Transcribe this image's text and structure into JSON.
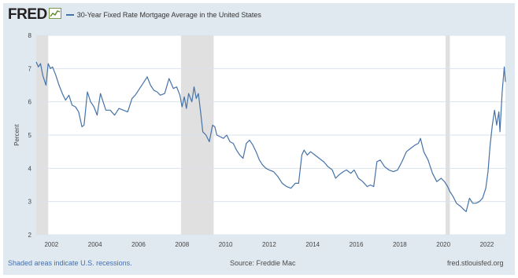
{
  "header": {
    "logo_text": "FRED",
    "logo_icon": "chart-line-icon",
    "series_title": "30-Year Fixed Rate Mortgage Average in the United States"
  },
  "footer": {
    "recession_note": "Shaded areas indicate U.S. recessions.",
    "source": "Source: Freddie Mac",
    "site": "fred.stlouisfed.org"
  },
  "colors": {
    "background": "#e1e9f0",
    "plot_background": "#ffffff",
    "line": "#4572a7",
    "recession": "#e0e0e0",
    "grid": "#dde3ea"
  },
  "chart_data": {
    "type": "line",
    "title": "30-Year Fixed Rate Mortgage Average in the United States",
    "xlabel": "",
    "ylabel": "Percent",
    "xlim": [
      2001.3,
      2022.85
    ],
    "ylim": [
      2,
      8
    ],
    "xticks": [
      "2002",
      "2004",
      "2006",
      "2008",
      "2010",
      "2012",
      "2014",
      "2016",
      "2018",
      "2020",
      "2022"
    ],
    "yticks": [
      "2",
      "3",
      "4",
      "5",
      "6",
      "7",
      "8"
    ],
    "grid": true,
    "recessions": [
      [
        2001.2,
        2001.85
      ],
      [
        2007.95,
        2009.45
      ],
      [
        2020.1,
        2020.3
      ]
    ],
    "series": [
      {
        "x": [
          2001.3,
          2001.4,
          2001.5,
          2001.6,
          2001.75,
          2001.85,
          2001.95,
          2002.05,
          2002.2,
          2002.35,
          2002.5,
          2002.65,
          2002.8,
          2002.95,
          2003.1,
          2003.25,
          2003.4,
          2003.5,
          2003.65,
          2003.8,
          2003.95,
          2004.1,
          2004.25,
          2004.4,
          2004.5,
          2004.7,
          2004.9,
          2005.1,
          2005.3,
          2005.5,
          2005.7,
          2005.85,
          2006.0,
          2006.2,
          2006.4,
          2006.55,
          2006.7,
          2006.85,
          2007.0,
          2007.2,
          2007.4,
          2007.5,
          2007.6,
          2007.75,
          2007.9,
          2008.0,
          2008.1,
          2008.2,
          2008.3,
          2008.45,
          2008.55,
          2008.65,
          2008.75,
          2008.85,
          2008.95,
          2009.1,
          2009.25,
          2009.4,
          2009.5,
          2009.6,
          2009.75,
          2009.9,
          2010.05,
          2010.2,
          2010.35,
          2010.5,
          2010.65,
          2010.8,
          2010.95,
          2011.1,
          2011.25,
          2011.4,
          2011.55,
          2011.7,
          2011.85,
          2012.0,
          2012.2,
          2012.4,
          2012.6,
          2012.8,
          2013.0,
          2013.2,
          2013.35,
          2013.5,
          2013.6,
          2013.75,
          2013.9,
          2014.1,
          2014.3,
          2014.5,
          2014.7,
          2014.9,
          2015.05,
          2015.2,
          2015.4,
          2015.55,
          2015.75,
          2015.9,
          2016.1,
          2016.3,
          2016.5,
          2016.65,
          2016.8,
          2016.95,
          2017.1,
          2017.3,
          2017.5,
          2017.7,
          2017.9,
          2018.1,
          2018.3,
          2018.5,
          2018.7,
          2018.85,
          2018.95,
          2019.1,
          2019.3,
          2019.5,
          2019.7,
          2019.9,
          2020.05,
          2020.2,
          2020.3,
          2020.45,
          2020.6,
          2020.8,
          2020.95,
          2021.05,
          2021.2,
          2021.35,
          2021.5,
          2021.65,
          2021.8,
          2021.95,
          2022.05,
          2022.15,
          2022.25,
          2022.35,
          2022.45,
          2022.55,
          2022.6,
          2022.7,
          2022.8,
          2022.85
        ],
        "values": [
          7.2,
          7.05,
          7.15,
          6.8,
          6.5,
          7.15,
          7.0,
          7.05,
          6.8,
          6.5,
          6.25,
          6.05,
          6.2,
          5.9,
          5.85,
          5.7,
          5.25,
          5.3,
          6.3,
          6.0,
          5.85,
          5.6,
          6.25,
          5.95,
          5.75,
          5.75,
          5.6,
          5.8,
          5.75,
          5.7,
          6.1,
          6.2,
          6.35,
          6.55,
          6.75,
          6.5,
          6.35,
          6.3,
          6.2,
          6.25,
          6.7,
          6.55,
          6.4,
          6.45,
          6.2,
          5.85,
          6.15,
          5.8,
          6.25,
          6.0,
          6.45,
          6.1,
          6.25,
          5.7,
          5.1,
          5.0,
          4.8,
          5.3,
          5.25,
          5.0,
          4.95,
          4.9,
          5.0,
          4.8,
          4.75,
          4.55,
          4.4,
          4.3,
          4.75,
          4.85,
          4.7,
          4.5,
          4.25,
          4.1,
          4.0,
          3.95,
          3.9,
          3.75,
          3.55,
          3.45,
          3.4,
          3.55,
          3.55,
          4.4,
          4.55,
          4.4,
          4.5,
          4.4,
          4.3,
          4.2,
          4.05,
          3.95,
          3.7,
          3.8,
          3.9,
          3.95,
          3.85,
          3.95,
          3.7,
          3.6,
          3.45,
          3.5,
          3.45,
          4.2,
          4.25,
          4.05,
          3.95,
          3.9,
          3.95,
          4.2,
          4.5,
          4.6,
          4.7,
          4.75,
          4.9,
          4.5,
          4.25,
          3.85,
          3.6,
          3.7,
          3.6,
          3.45,
          3.3,
          3.15,
          2.95,
          2.85,
          2.75,
          2.7,
          3.1,
          2.95,
          2.95,
          3.0,
          3.1,
          3.4,
          3.9,
          4.7,
          5.3,
          5.75,
          5.3,
          5.7,
          5.1,
          6.3,
          7.05,
          6.6
        ]
      }
    ]
  }
}
